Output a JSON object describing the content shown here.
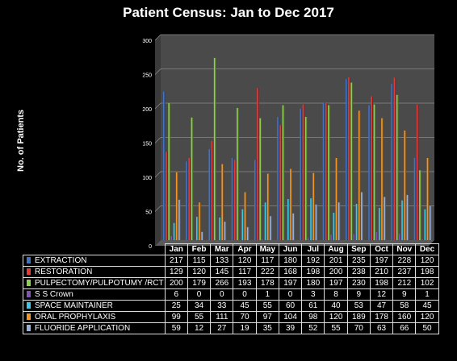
{
  "chart_data": {
    "type": "bar",
    "title": "Patient Census: Jan to Dec 2017",
    "ylabel": "No. of Patients",
    "xlabel": "",
    "ylim": [
      0,
      300
    ],
    "yticks": [
      "0",
      "50",
      "100",
      "150",
      "200",
      "250",
      "300"
    ],
    "grid": true,
    "legend": "table-below",
    "categories": [
      "Jan",
      "Feb",
      "Mar",
      "Apr",
      "May",
      "Jun",
      "Jul",
      "Aug",
      "Sep",
      "Oct",
      "Nov",
      "Dec"
    ],
    "series": [
      {
        "name": "EXTRACTION",
        "color": "#4472c4",
        "values": [
          217,
          115,
          133,
          120,
          117,
          180,
          192,
          201,
          235,
          197,
          228,
          120
        ]
      },
      {
        "name": "RESTORATION",
        "color": "#e03c3c",
        "values": [
          129,
          120,
          145,
          117,
          222,
          168,
          198,
          200,
          238,
          210,
          237,
          198
        ]
      },
      {
        "name": "PULPECTOMY/PULPOTUMY /RCT",
        "color": "#8fd14f",
        "values": [
          200,
          179,
          266,
          193,
          178,
          197,
          180,
          197,
          230,
          198,
          212,
          102
        ]
      },
      {
        "name": "S S Crown",
        "color": "#7e55b5",
        "values": [
          6,
          0,
          0,
          0,
          1,
          0,
          3,
          8,
          9,
          12,
          9,
          1
        ]
      },
      {
        "name": "SPACE MAINTAINER",
        "color": "#3ec8e0",
        "values": [
          25,
          34,
          33,
          45,
          55,
          60,
          61,
          40,
          53,
          47,
          58,
          45
        ]
      },
      {
        "name": "ORAL PROPHYLAXIS",
        "color": "#f0962a",
        "values": [
          99,
          55,
          111,
          70,
          97,
          104,
          98,
          120,
          189,
          178,
          160,
          120
        ]
      },
      {
        "name": "FLUORIDE APPLICATION",
        "color": "#9bb3dc",
        "values": [
          59,
          12,
          27,
          19,
          35,
          39,
          52,
          55,
          70,
          63,
          66,
          50
        ]
      }
    ]
  }
}
